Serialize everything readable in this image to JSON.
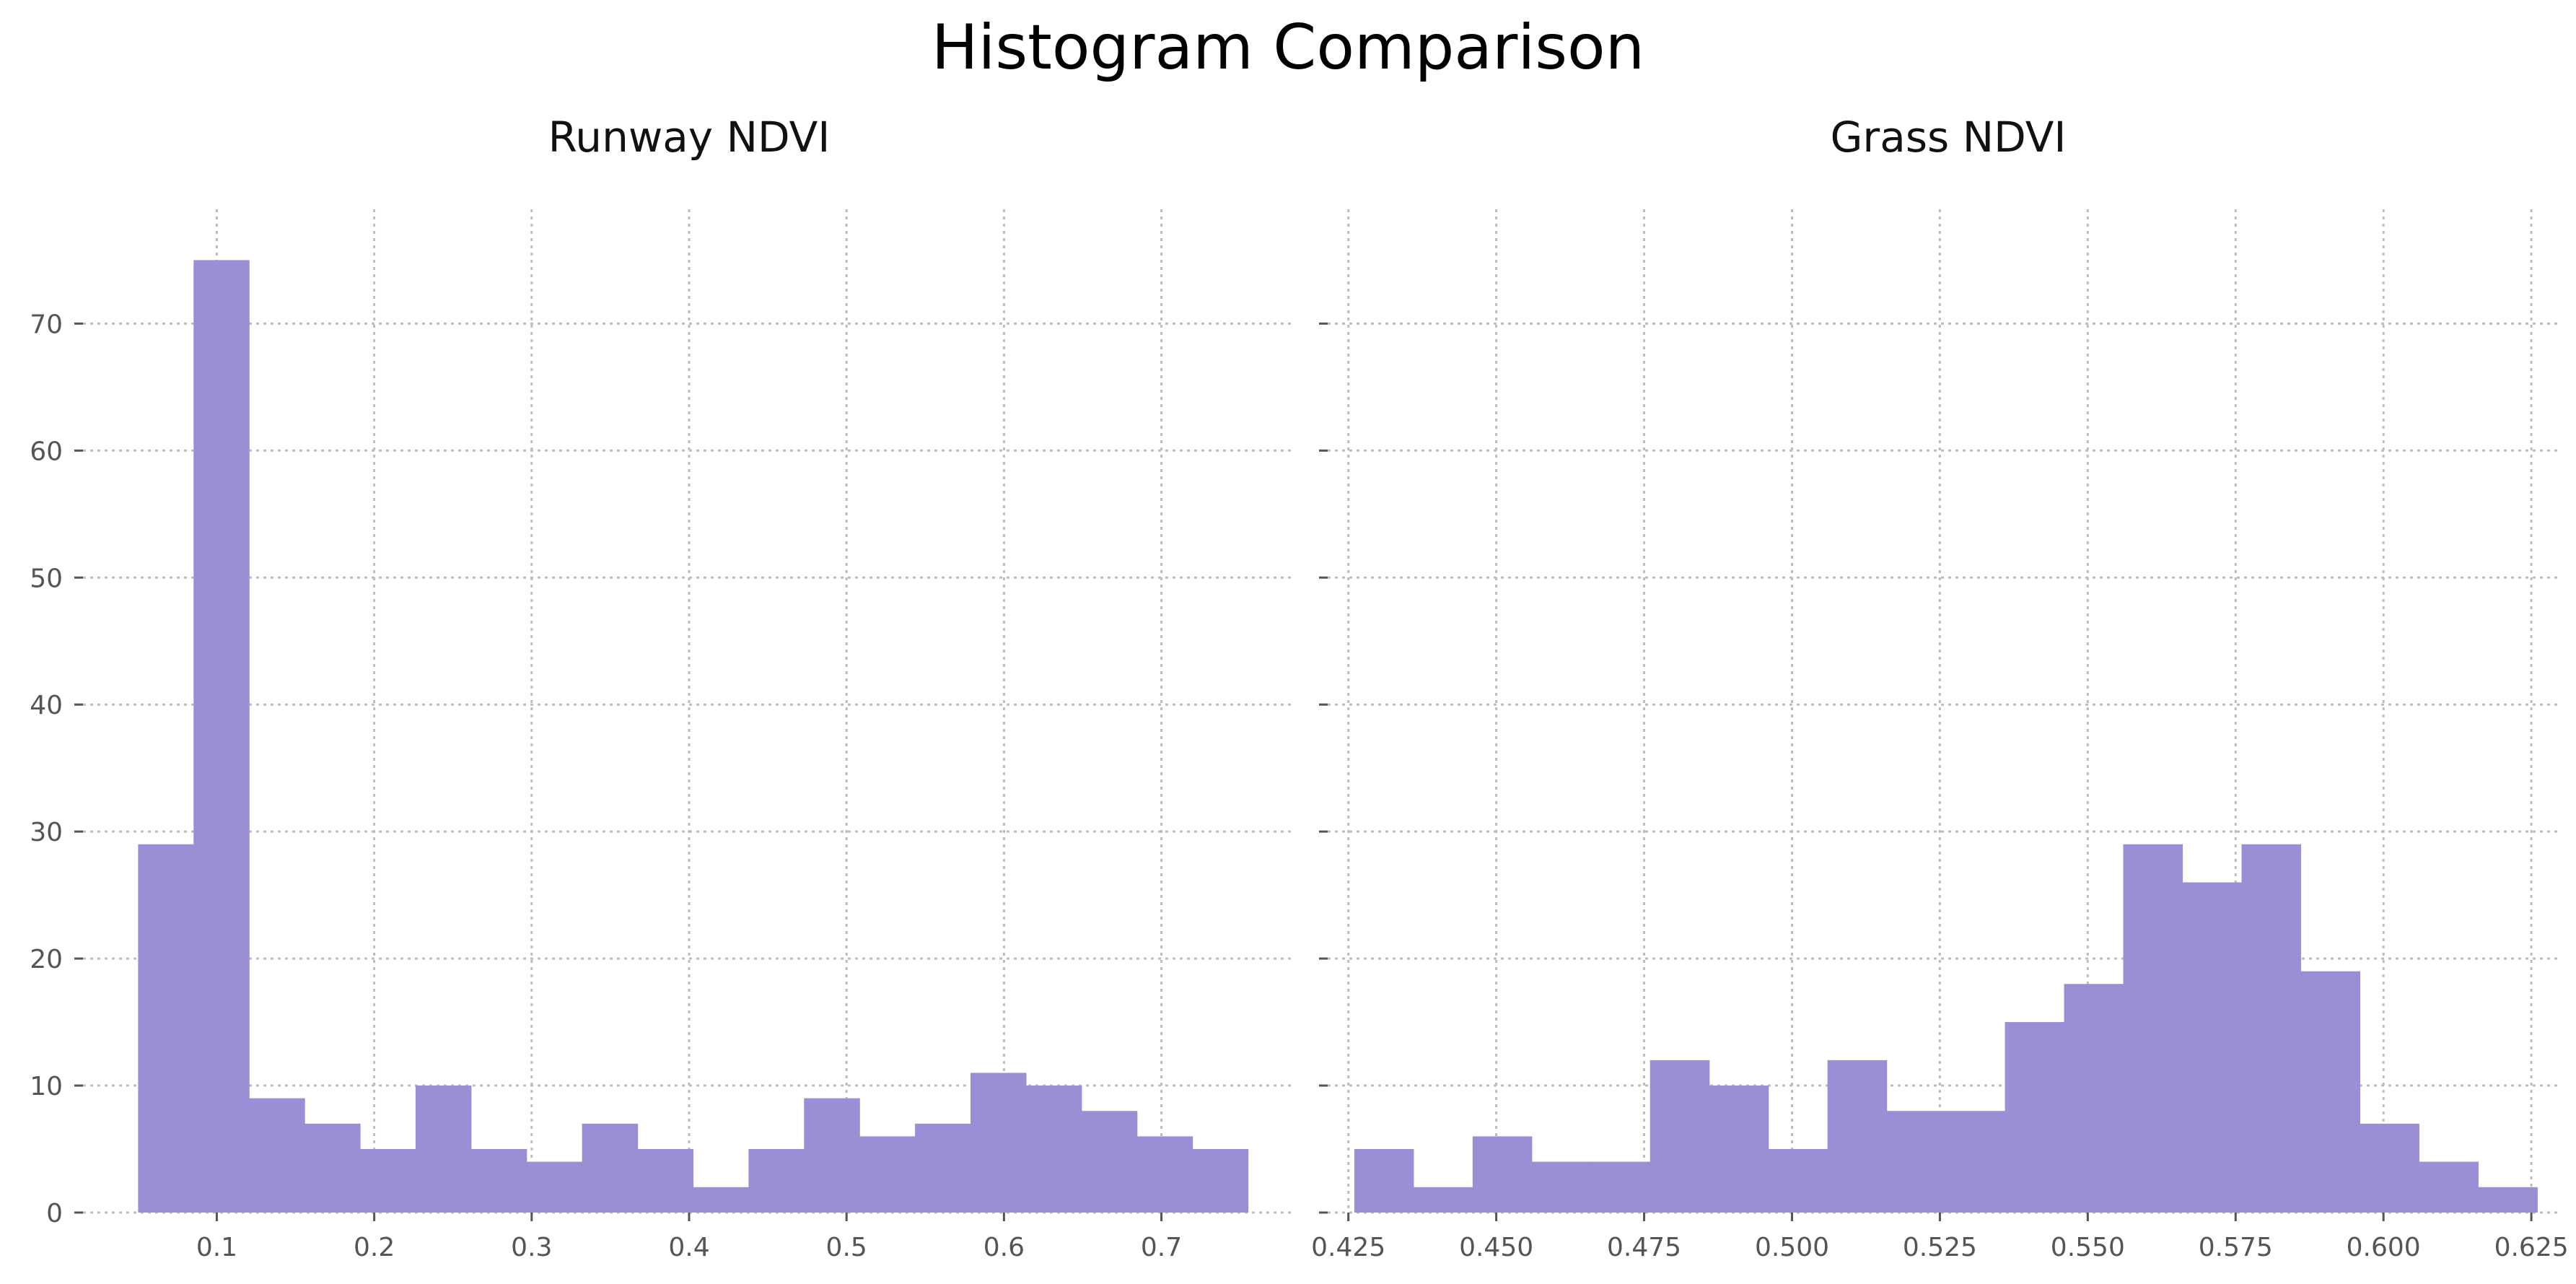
{
  "title": "Histogram Comparison",
  "bar_color": "#998fd4",
  "grid_color": "#bdbdbd",
  "chart_data": [
    {
      "type": "histogram",
      "title": "Runway NDVI",
      "xlabel": "",
      "ylabel": "",
      "grid": true,
      "xlim": [
        0.015,
        0.785
      ],
      "ylim": [
        0,
        79
      ],
      "x_ticks": [
        0.1,
        0.2,
        0.3,
        0.4,
        0.5,
        0.6,
        0.7
      ],
      "x_tick_labels": [
        "0.1",
        "0.2",
        "0.3",
        "0.4",
        "0.5",
        "0.6",
        "0.7"
      ],
      "y_ticks": [
        0,
        10,
        20,
        30,
        40,
        50,
        60,
        70
      ],
      "y_tick_labels": [
        "0",
        "10",
        "20",
        "30",
        "40",
        "50",
        "60",
        "70"
      ],
      "bin_start": 0.05,
      "bin_end": 0.755,
      "counts": [
        29,
        75,
        9,
        7,
        5,
        10,
        5,
        4,
        7,
        5,
        2,
        5,
        9,
        6,
        7,
        11,
        10,
        8,
        6,
        5
      ]
    },
    {
      "type": "histogram",
      "title": "Grass NDVI",
      "xlabel": "",
      "ylabel": "",
      "grid": true,
      "xlim": [
        0.4215,
        0.6295
      ],
      "ylim": [
        0,
        79
      ],
      "x_ticks": [
        0.425,
        0.45,
        0.475,
        0.5,
        0.525,
        0.55,
        0.575,
        0.6,
        0.625
      ],
      "x_tick_labels": [
        "0.425",
        "0.450",
        "0.475",
        "0.500",
        "0.525",
        "0.550",
        "0.575",
        "0.600",
        "0.625"
      ],
      "y_ticks": [
        0,
        10,
        20,
        30,
        40,
        50,
        60,
        70
      ],
      "y_tick_labels": [
        "",
        "",
        "",
        "",
        "",
        "",
        "",
        ""
      ],
      "bin_start": 0.426,
      "bin_end": 0.626,
      "counts": [
        5,
        2,
        6,
        4,
        4,
        12,
        10,
        5,
        12,
        8,
        8,
        15,
        18,
        29,
        26,
        29,
        19,
        7,
        4,
        2
      ]
    }
  ]
}
